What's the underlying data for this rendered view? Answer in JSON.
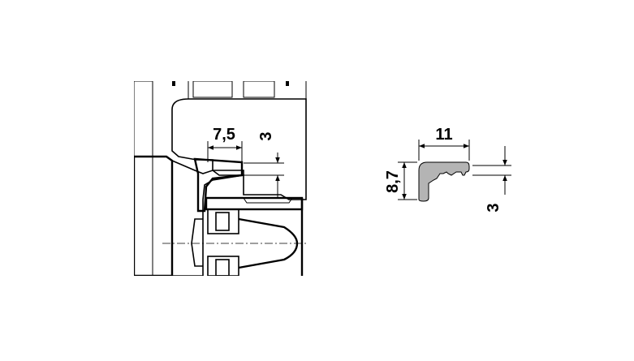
{
  "section_drawing": {
    "dimensions": {
      "width_gap": "7,5",
      "height_gap": "3"
    }
  },
  "profile_drawing": {
    "dimensions": {
      "width": "11",
      "height": "8,7",
      "lip": "3"
    }
  },
  "colors": {
    "fill_gray": "#d6d6d6",
    "profile_gray": "#b4b4b4",
    "line": "#000000"
  }
}
